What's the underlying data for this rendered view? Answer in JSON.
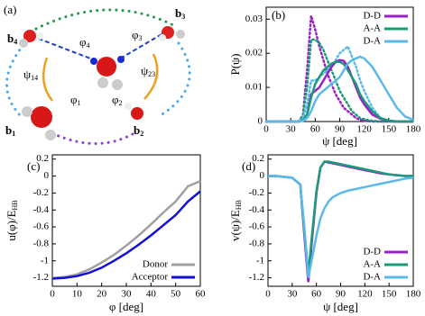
{
  "panel_a": {
    "panel_label": "(a)",
    "labels": [
      {
        "base": "b",
        "sub": "4"
      },
      {
        "base": "b",
        "sub": "3"
      },
      {
        "base": "b",
        "sub": "1"
      },
      {
        "base": "b",
        "sub": "2"
      },
      {
        "base": "φ",
        "sub": "4"
      },
      {
        "base": "φ",
        "sub": "3"
      },
      {
        "base": "ψ",
        "sub": "14"
      },
      {
        "base": "ψ",
        "sub": "23"
      },
      {
        "base": "φ",
        "sub": "1"
      },
      {
        "base": "φ",
        "sub": "2"
      }
    ]
  },
  "chart_data": [
    {
      "type": "line",
      "panel_label": "(b)",
      "ylabel": "P(ψ)",
      "xlabel": "ψ [deg]",
      "x": [
        0,
        10,
        20,
        30,
        40,
        45,
        50,
        55,
        60,
        65,
        70,
        75,
        80,
        85,
        90,
        95,
        100,
        105,
        110,
        115,
        120,
        130,
        140,
        150,
        160,
        170,
        180
      ],
      "xlim": [
        0,
        180
      ],
      "xticks": [
        0,
        30,
        60,
        90,
        120,
        150,
        180
      ],
      "ylim": [
        0,
        0.0335
      ],
      "yticks": [
        0,
        0.01,
        0.02,
        0.03
      ],
      "legend": "upper right",
      "series": [
        {
          "name": "D-D",
          "color": "#9b1fc9",
          "values": [
            0,
            0,
            0,
            0,
            0,
            0.0005,
            0.002,
            0.008,
            0.009,
            0.01,
            0.012,
            0.014,
            0.016,
            0.0175,
            0.018,
            0.0178,
            0.016,
            0.013,
            0.01,
            0.007,
            0.005,
            0.002,
            0.0008,
            0.0002,
            0,
            0,
            0
          ]
        },
        {
          "name": "A-A",
          "color": "#1a9b77",
          "values": [
            0,
            0,
            0,
            0,
            0,
            0.0005,
            0.002,
            0.007,
            0.011,
            0.013,
            0.015,
            0.016,
            0.017,
            0.0175,
            0.0175,
            0.0168,
            0.015,
            0.013,
            0.011,
            0.008,
            0.006,
            0.003,
            0.001,
            0.0003,
            0,
            0,
            0
          ]
        },
        {
          "name": "D-A",
          "color": "#5bb9ea",
          "values": [
            0,
            0,
            0,
            0,
            0,
            0.0002,
            0.001,
            0.003,
            0.006,
            0.008,
            0.009,
            0.01,
            0.011,
            0.012,
            0.013,
            0.015,
            0.017,
            0.018,
            0.0185,
            0.019,
            0.0185,
            0.016,
            0.012,
            0.008,
            0.004,
            0.0015,
            0.0005
          ]
        }
      ],
      "dotted_series": [
        {
          "color": "#9b1fc9",
          "values": [
            0,
            0,
            0,
            0,
            0,
            0.002,
            0.015,
            0.031,
            0.027,
            0.022,
            0.018,
            0.014,
            0.011,
            0.008,
            0.006,
            0.004,
            0.003,
            0.002,
            0.001,
            0.0005,
            0.0002,
            0,
            0,
            0,
            0,
            0,
            0
          ]
        },
        {
          "color": "#1a9b77",
          "values": [
            0,
            0,
            0,
            0,
            0,
            0.002,
            0.01,
            0.024,
            0.024,
            0.023,
            0.021,
            0.018,
            0.015,
            0.012,
            0.009,
            0.007,
            0.005,
            0.003,
            0.002,
            0.001,
            0.0006,
            0.0002,
            0,
            0,
            0,
            0,
            0
          ]
        },
        {
          "color": "#5bb9ea",
          "values": [
            0,
            0,
            0,
            0,
            0,
            0.001,
            0.005,
            0.012,
            0.012,
            0.013,
            0.014,
            0.015,
            0.016,
            0.018,
            0.02,
            0.021,
            0.022,
            0.019,
            0.016,
            0.012,
            0.009,
            0.004,
            0.001,
            0.0003,
            0,
            0,
            0
          ]
        }
      ]
    },
    {
      "type": "line",
      "panel_label": "(c)",
      "ylabel": {
        "base": "u(φ)/E",
        "sub": "HB"
      },
      "xlabel": "φ [deg]",
      "x": [
        0,
        5,
        10,
        15,
        20,
        25,
        30,
        35,
        40,
        45,
        50,
        55,
        60
      ],
      "xlim": [
        0,
        60
      ],
      "xticks": [
        0,
        10,
        20,
        30,
        40,
        50,
        60
      ],
      "ylim": [
        -1.3,
        0.25
      ],
      "yticks": [
        0.2,
        0,
        -0.2,
        -0.4,
        -0.6,
        -0.8,
        -1,
        -1.2
      ],
      "legend": "lower right",
      "series": [
        {
          "name": "Donor",
          "color": "#a0a0a0",
          "values": [
            -1.2,
            -1.19,
            -1.16,
            -1.1,
            -1.02,
            -0.93,
            -0.82,
            -0.7,
            -0.57,
            -0.43,
            -0.3,
            -0.12,
            -0.06
          ]
        },
        {
          "name": "Acceptor",
          "color": "#1010d8",
          "values": [
            -1.21,
            -1.2,
            -1.18,
            -1.14,
            -1.08,
            -1.0,
            -0.91,
            -0.81,
            -0.7,
            -0.58,
            -0.46,
            -0.3,
            -0.18
          ]
        }
      ]
    },
    {
      "type": "line",
      "panel_label": "(d)",
      "ylabel": {
        "base": "v(ψ)/E",
        "sub": "HB"
      },
      "xlabel": "ψ [deg]",
      "x": [
        0,
        10,
        20,
        30,
        40,
        45,
        50,
        55,
        60,
        65,
        70,
        75,
        80,
        90,
        100,
        110,
        120,
        130,
        140,
        150,
        160,
        170,
        180
      ],
      "xlim": [
        0,
        180
      ],
      "xticks": [
        0,
        30,
        60,
        90,
        120,
        150,
        180
      ],
      "ylim": [
        -1.3,
        0.25
      ],
      "yticks": [
        0.2,
        0,
        -0.2,
        -0.4,
        -0.6,
        -0.8,
        -1,
        -1.2
      ],
      "legend": "lower right",
      "series": [
        {
          "name": "D-D",
          "color": "#9b1fc9",
          "values": [
            0,
            0,
            -0.01,
            -0.02,
            -0.1,
            -0.7,
            -1.25,
            -0.7,
            -0.2,
            0.1,
            0.17,
            0.16,
            0.15,
            0.13,
            0.11,
            0.09,
            0.07,
            0.05,
            0.03,
            0.02,
            0.01,
            0,
            0
          ]
        },
        {
          "name": "A-A",
          "color": "#1a9b77",
          "values": [
            0,
            0,
            -0.01,
            -0.02,
            -0.1,
            -0.65,
            -1.15,
            -0.65,
            -0.18,
            0.1,
            0.17,
            0.17,
            0.16,
            0.14,
            0.12,
            0.1,
            0.08,
            0.06,
            0.04,
            0.02,
            0.01,
            0,
            0
          ]
        },
        {
          "name": "D-A",
          "color": "#5bb9ea",
          "values": [
            0,
            0,
            -0.01,
            -0.02,
            -0.1,
            -0.6,
            -1.2,
            -0.95,
            -0.7,
            -0.5,
            -0.38,
            -0.3,
            -0.25,
            -0.2,
            -0.17,
            -0.15,
            -0.13,
            -0.11,
            -0.09,
            -0.07,
            -0.05,
            -0.03,
            -0.02
          ]
        }
      ]
    }
  ]
}
